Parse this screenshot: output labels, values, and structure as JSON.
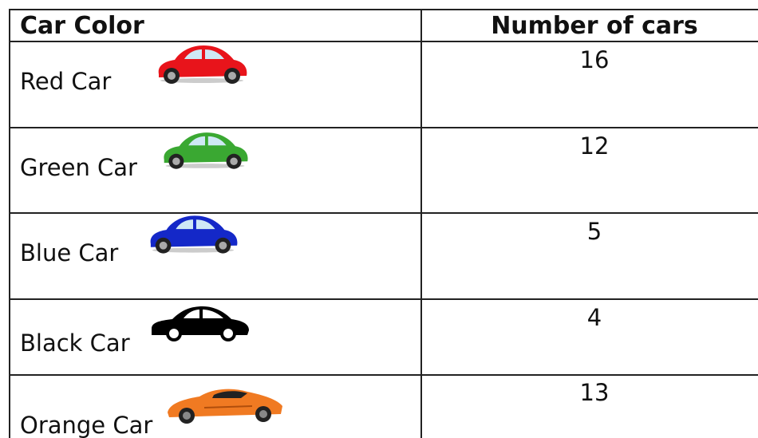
{
  "table": {
    "header": [
      "Car Color",
      "Number of cars"
    ],
    "rows": [
      [
        "Red Car",
        16
      ],
      [
        "Green Car",
        12
      ],
      [
        "Blue Car",
        5
      ],
      [
        "Black Car",
        4
      ],
      [
        "Orange Car",
        13
      ]
    ]
  }
}
